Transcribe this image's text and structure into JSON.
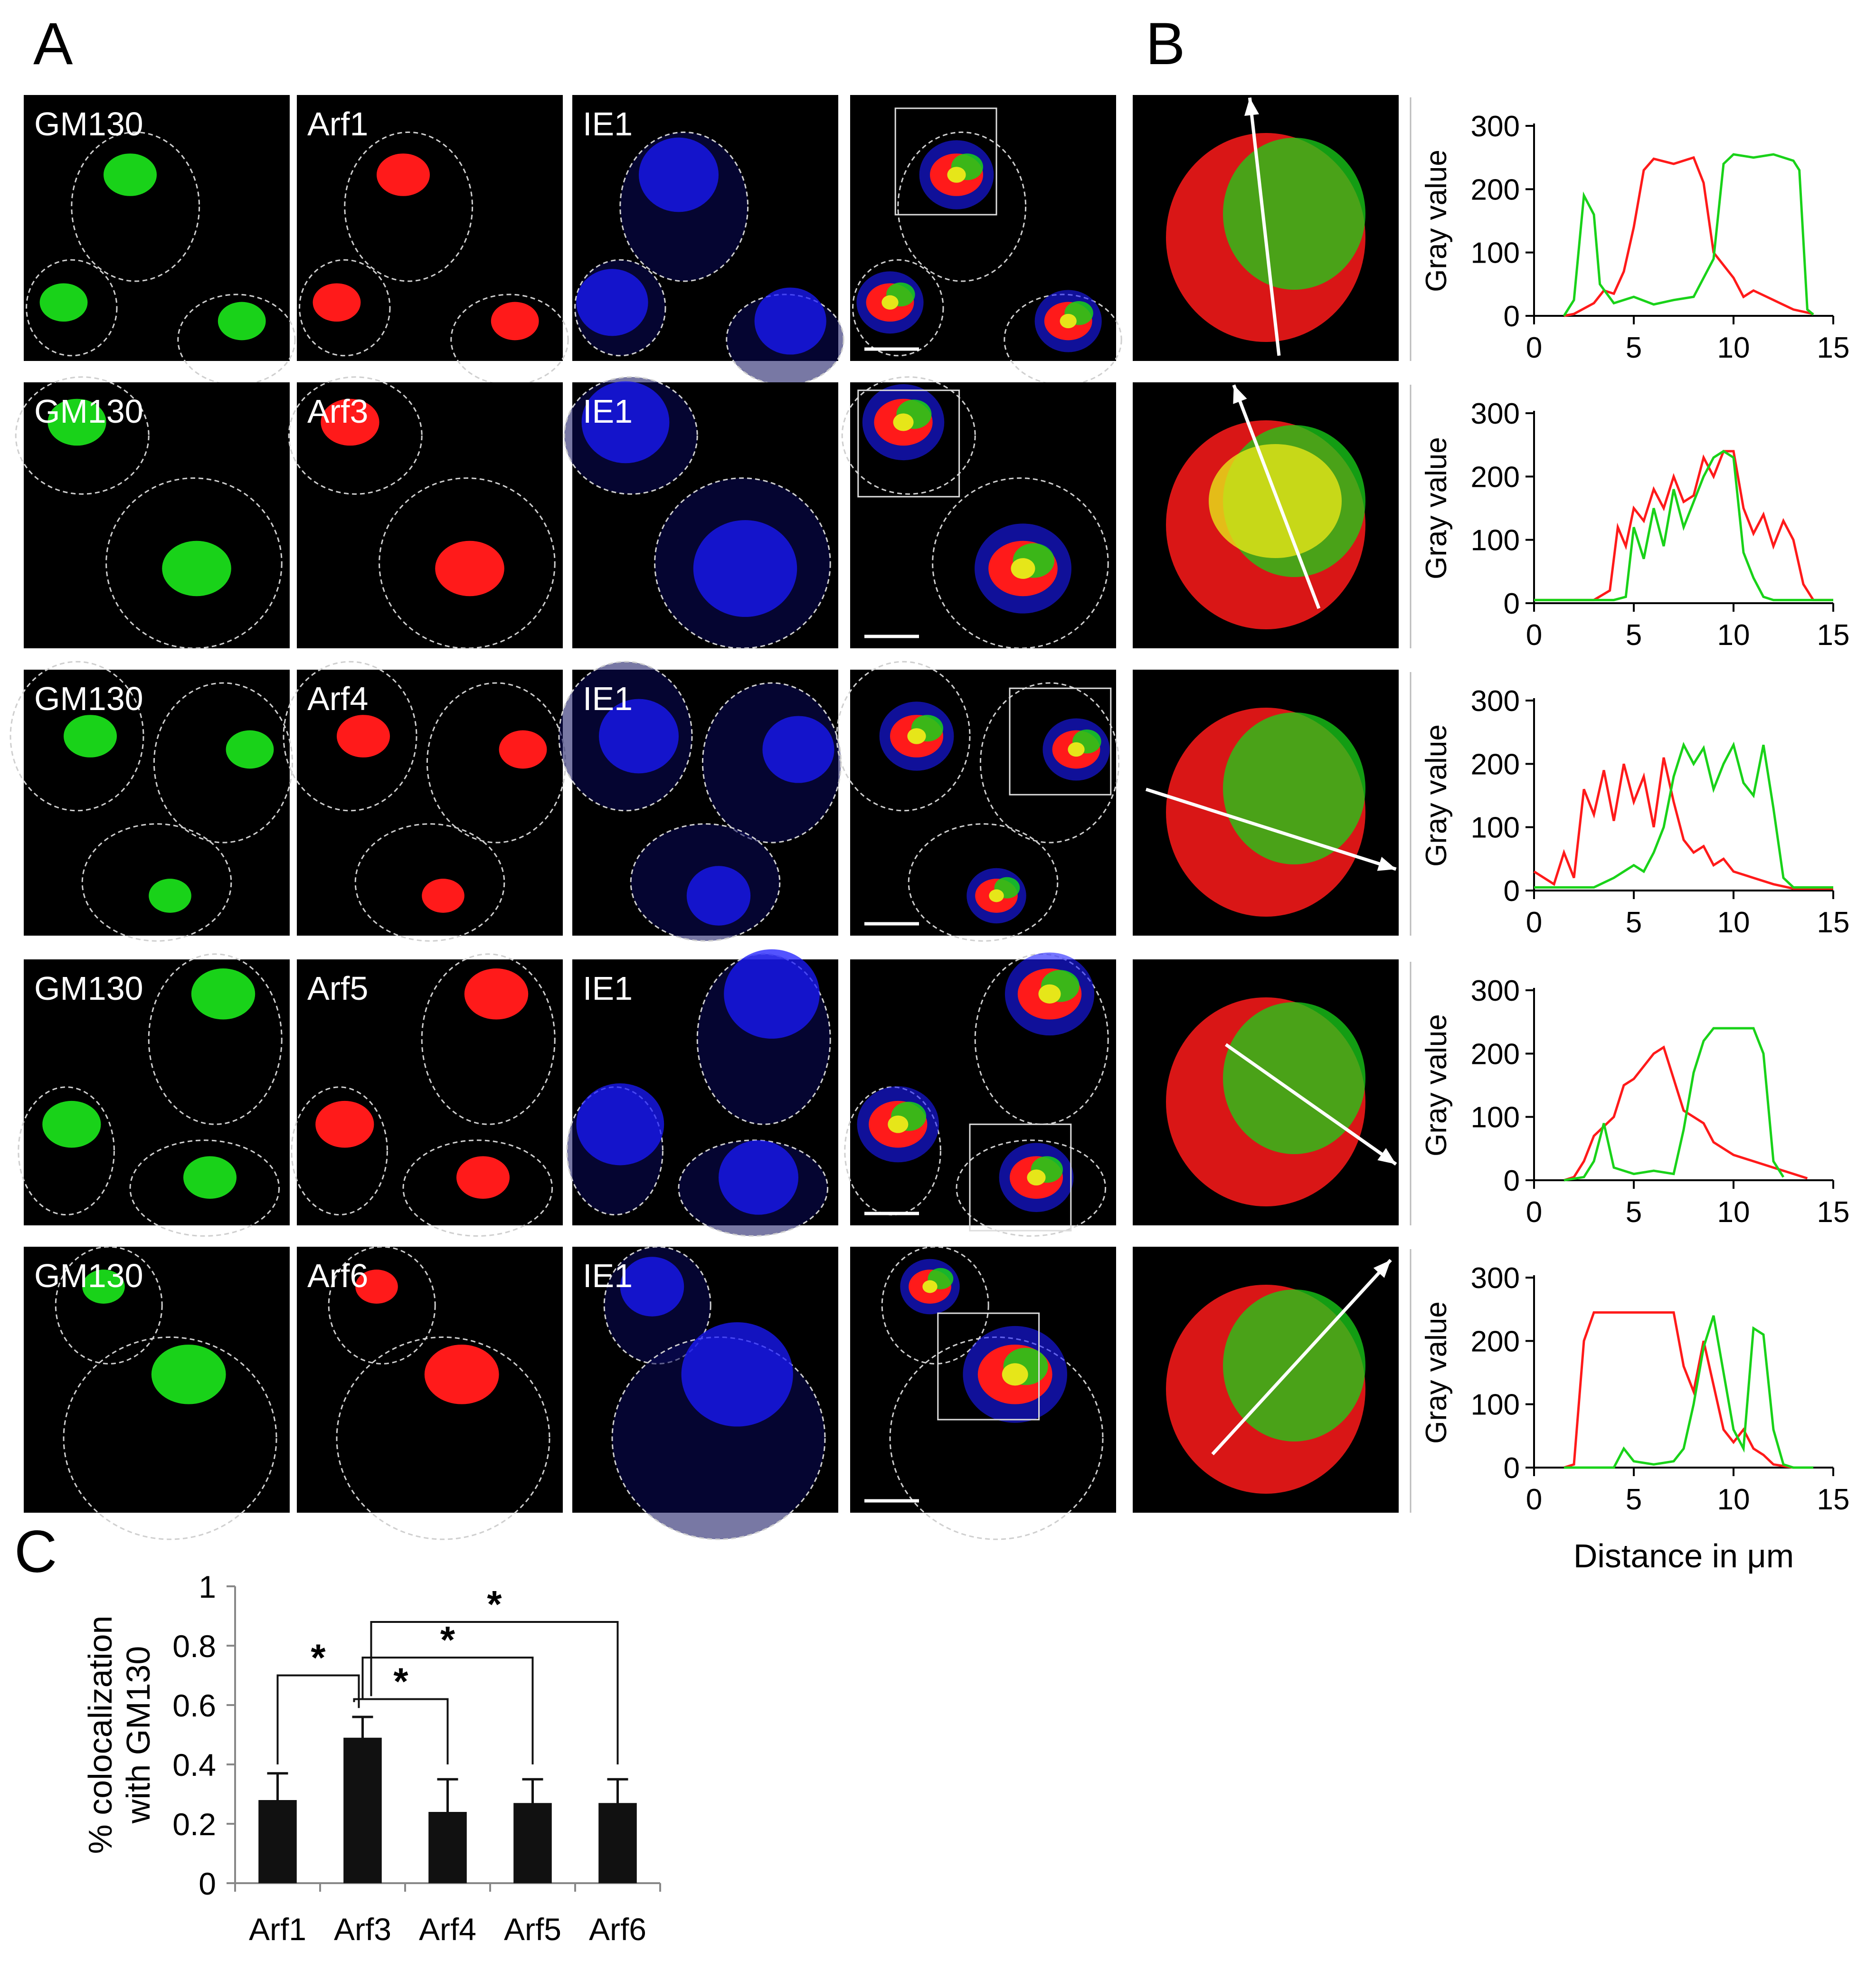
{
  "panels": {
    "A": "A",
    "B": "B",
    "C": "C"
  },
  "micrographs": {
    "rows": [
      {
        "labels": [
          "GM130",
          "Arf1",
          "IE1"
        ]
      },
      {
        "labels": [
          "GM130",
          "Arf3",
          "IE1"
        ]
      },
      {
        "labels": [
          "GM130",
          "Arf4",
          "IE1"
        ]
      },
      {
        "labels": [
          "GM130",
          "Arf5",
          "IE1"
        ]
      },
      {
        "labels": [
          "GM130",
          "Arf6",
          "IE1"
        ]
      }
    ],
    "channel_colors": {
      "GM130": "#19d219",
      "Arf": "#ff1a1a",
      "IE1": "#1a1aff",
      "overlap": "#e6e619"
    }
  },
  "chart_data": [
    {
      "id": "profile-arf1",
      "type": "line",
      "ylabel": "Gray value",
      "yticks": [
        0,
        100,
        200,
        300
      ],
      "ylim": [
        0,
        300
      ],
      "xticks": [
        0,
        5,
        10,
        15
      ],
      "xlim": [
        0,
        15
      ],
      "series": [
        {
          "color": "#ff1a1a",
          "points": [
            [
              1.5,
              0
            ],
            [
              2,
              3
            ],
            [
              3,
              20
            ],
            [
              3.5,
              40
            ],
            [
              4,
              35
            ],
            [
              4.5,
              70
            ],
            [
              5,
              140
            ],
            [
              5.5,
              230
            ],
            [
              6,
              248
            ],
            [
              7,
              240
            ],
            [
              8,
              250
            ],
            [
              8.5,
              210
            ],
            [
              9,
              100
            ],
            [
              9.5,
              80
            ],
            [
              10,
              60
            ],
            [
              10.5,
              30
            ],
            [
              11,
              40
            ],
            [
              12,
              25
            ],
            [
              13,
              10
            ],
            [
              14,
              3
            ]
          ]
        },
        {
          "color": "#19d219",
          "points": [
            [
              1.5,
              0
            ],
            [
              2,
              25
            ],
            [
              2.5,
              190
            ],
            [
              3,
              160
            ],
            [
              3.3,
              50
            ],
            [
              4,
              20
            ],
            [
              5,
              30
            ],
            [
              6,
              18
            ],
            [
              7,
              25
            ],
            [
              8,
              30
            ],
            [
              9,
              90
            ],
            [
              9.5,
              240
            ],
            [
              10,
              255
            ],
            [
              11,
              250
            ],
            [
              12,
              255
            ],
            [
              13,
              245
            ],
            [
              13.3,
              230
            ],
            [
              13.7,
              10
            ],
            [
              14,
              2
            ]
          ]
        }
      ]
    },
    {
      "id": "profile-arf3",
      "type": "line",
      "ylabel": "Gray value",
      "yticks": [
        0,
        100,
        200,
        300
      ],
      "ylim": [
        0,
        300
      ],
      "xticks": [
        0,
        5,
        10,
        15
      ],
      "xlim": [
        0,
        15
      ],
      "series": [
        {
          "color": "#ff1a1a",
          "points": [
            [
              0,
              5
            ],
            [
              3,
              5
            ],
            [
              3.8,
              20
            ],
            [
              4.2,
              120
            ],
            [
              4.6,
              90
            ],
            [
              5,
              150
            ],
            [
              5.5,
              130
            ],
            [
              6,
              180
            ],
            [
              6.5,
              150
            ],
            [
              7,
              200
            ],
            [
              7.5,
              160
            ],
            [
              8,
              170
            ],
            [
              8.5,
              230
            ],
            [
              9,
              200
            ],
            [
              9.5,
              240
            ],
            [
              10,
              240
            ],
            [
              10.5,
              150
            ],
            [
              11,
              110
            ],
            [
              11.5,
              140
            ],
            [
              12,
              90
            ],
            [
              12.5,
              130
            ],
            [
              13,
              100
            ],
            [
              13.5,
              30
            ],
            [
              14,
              5
            ],
            [
              15,
              5
            ]
          ]
        },
        {
          "color": "#19d219",
          "points": [
            [
              0,
              5
            ],
            [
              4,
              5
            ],
            [
              4.6,
              10
            ],
            [
              5,
              120
            ],
            [
              5.5,
              70
            ],
            [
              6,
              150
            ],
            [
              6.5,
              90
            ],
            [
              7,
              180
            ],
            [
              7.5,
              120
            ],
            [
              8,
              160
            ],
            [
              8.5,
              200
            ],
            [
              9,
              230
            ],
            [
              9.5,
              240
            ],
            [
              10,
              230
            ],
            [
              10.5,
              80
            ],
            [
              11,
              40
            ],
            [
              11.5,
              10
            ],
            [
              12,
              5
            ],
            [
              15,
              5
            ]
          ]
        }
      ]
    },
    {
      "id": "profile-arf4",
      "type": "line",
      "ylabel": "Gray value",
      "yticks": [
        0,
        100,
        200,
        300
      ],
      "ylim": [
        0,
        300
      ],
      "xticks": [
        0,
        5,
        10,
        15
      ],
      "xlim": [
        0,
        15
      ],
      "series": [
        {
          "color": "#ff1a1a",
          "points": [
            [
              0,
              30
            ],
            [
              1,
              10
            ],
            [
              1.5,
              60
            ],
            [
              2,
              20
            ],
            [
              2.5,
              160
            ],
            [
              3,
              120
            ],
            [
              3.5,
              190
            ],
            [
              4,
              110
            ],
            [
              4.5,
              200
            ],
            [
              5,
              140
            ],
            [
              5.5,
              180
            ],
            [
              6,
              100
            ],
            [
              6.5,
              210
            ],
            [
              7,
              140
            ],
            [
              7.5,
              80
            ],
            [
              8,
              60
            ],
            [
              8.5,
              70
            ],
            [
              9,
              40
            ],
            [
              9.5,
              50
            ],
            [
              10,
              30
            ],
            [
              11,
              20
            ],
            [
              12,
              10
            ],
            [
              13,
              3
            ],
            [
              15,
              3
            ]
          ]
        },
        {
          "color": "#19d219",
          "points": [
            [
              0,
              5
            ],
            [
              3,
              5
            ],
            [
              4,
              20
            ],
            [
              5,
              40
            ],
            [
              5.5,
              30
            ],
            [
              6,
              60
            ],
            [
              6.5,
              100
            ],
            [
              7,
              180
            ],
            [
              7.5,
              230
            ],
            [
              8,
              200
            ],
            [
              8.5,
              225
            ],
            [
              9,
              160
            ],
            [
              9.5,
              200
            ],
            [
              10,
              230
            ],
            [
              10.5,
              170
            ],
            [
              11,
              150
            ],
            [
              11.5,
              230
            ],
            [
              12,
              130
            ],
            [
              12.5,
              20
            ],
            [
              13,
              5
            ],
            [
              15,
              5
            ]
          ]
        }
      ]
    },
    {
      "id": "profile-arf5",
      "type": "line",
      "ylabel": "Gray value",
      "yticks": [
        0,
        100,
        200,
        300
      ],
      "ylim": [
        0,
        300
      ],
      "xticks": [
        0,
        5,
        10,
        15
      ],
      "xlim": [
        0,
        15
      ],
      "series": [
        {
          "color": "#ff1a1a",
          "points": [
            [
              1.5,
              0
            ],
            [
              2,
              5
            ],
            [
              2.5,
              30
            ],
            [
              3,
              70
            ],
            [
              3.5,
              85
            ],
            [
              4,
              100
            ],
            [
              4.5,
              150
            ],
            [
              5,
              160
            ],
            [
              5.5,
              180
            ],
            [
              6,
              200
            ],
            [
              6.5,
              210
            ],
            [
              7,
              160
            ],
            [
              7.5,
              110
            ],
            [
              8,
              100
            ],
            [
              8.5,
              90
            ],
            [
              9,
              60
            ],
            [
              9.5,
              50
            ],
            [
              10,
              40
            ],
            [
              11,
              30
            ],
            [
              12,
              20
            ],
            [
              13,
              10
            ],
            [
              13.7,
              3
            ]
          ]
        },
        {
          "color": "#19d219",
          "points": [
            [
              1.5,
              0
            ],
            [
              2.5,
              5
            ],
            [
              3,
              30
            ],
            [
              3.5,
              90
            ],
            [
              4,
              20
            ],
            [
              5,
              10
            ],
            [
              6,
              15
            ],
            [
              7,
              10
            ],
            [
              7.5,
              80
            ],
            [
              8,
              170
            ],
            [
              8.5,
              220
            ],
            [
              9,
              240
            ],
            [
              10,
              240
            ],
            [
              11,
              240
            ],
            [
              11.5,
              200
            ],
            [
              12,
              30
            ],
            [
              12.5,
              5
            ]
          ]
        }
      ]
    },
    {
      "id": "profile-arf6",
      "type": "line",
      "ylabel": "Gray value",
      "yticks": [
        0,
        100,
        200,
        300
      ],
      "ylim": [
        0,
        300
      ],
      "xticks": [
        0,
        5,
        10,
        15
      ],
      "xlim": [
        0,
        15
      ],
      "xlabel": "Distance in μm",
      "series": [
        {
          "color": "#ff1a1a",
          "points": [
            [
              1.5,
              0
            ],
            [
              2,
              5
            ],
            [
              2.5,
              200
            ],
            [
              3,
              245
            ],
            [
              4,
              245
            ],
            [
              5,
              245
            ],
            [
              6,
              245
            ],
            [
              7,
              245
            ],
            [
              7.5,
              160
            ],
            [
              8,
              120
            ],
            [
              8.5,
              200
            ],
            [
              9,
              130
            ],
            [
              9.5,
              60
            ],
            [
              10,
              40
            ],
            [
              10.5,
              60
            ],
            [
              11,
              30
            ],
            [
              11.5,
              20
            ],
            [
              12,
              5
            ],
            [
              13,
              0
            ]
          ]
        },
        {
          "color": "#19d219",
          "points": [
            [
              1.5,
              0
            ],
            [
              4,
              0
            ],
            [
              4.5,
              30
            ],
            [
              5,
              10
            ],
            [
              6,
              5
            ],
            [
              7,
              10
            ],
            [
              7.5,
              30
            ],
            [
              8,
              100
            ],
            [
              8.5,
              190
            ],
            [
              9,
              240
            ],
            [
              9.5,
              150
            ],
            [
              10,
              60
            ],
            [
              10.5,
              30
            ],
            [
              11,
              220
            ],
            [
              11.5,
              210
            ],
            [
              12,
              60
            ],
            [
              12.5,
              5
            ],
            [
              13,
              0
            ],
            [
              14,
              0
            ]
          ]
        }
      ]
    },
    {
      "id": "colocalization-bars",
      "type": "bar",
      "ylabel": "% colocalization with GM130",
      "ylabel_lines": [
        "% colocalization",
        "with GM130"
      ],
      "categories": [
        "Arf1",
        "Arf3",
        "Arf4",
        "Arf5",
        "Arf6"
      ],
      "values": [
        0.28,
        0.49,
        0.24,
        0.27,
        0.27
      ],
      "errors": [
        0.09,
        0.07,
        0.11,
        0.08,
        0.08
      ],
      "ylim": [
        0,
        1
      ],
      "yticks": [
        "0",
        "0.2",
        "0.4",
        "0.6",
        "0.8",
        "1"
      ],
      "significance": [
        {
          "from": "Arf1",
          "to": "Arf3",
          "mark": "*"
        },
        {
          "from": "Arf3",
          "to": "Arf4",
          "mark": "*"
        },
        {
          "from": "Arf3",
          "to": "Arf5",
          "mark": "*"
        },
        {
          "from": "Arf3",
          "to": "Arf6",
          "mark": "*"
        }
      ]
    }
  ]
}
